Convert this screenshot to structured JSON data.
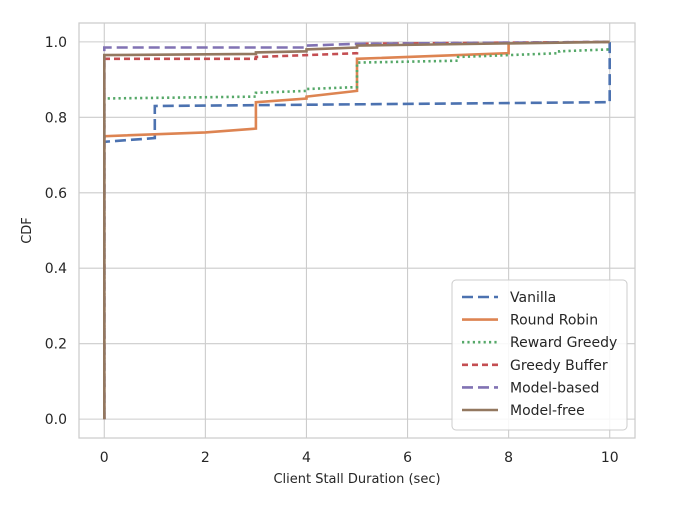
{
  "chart_data": {
    "type": "line",
    "title": "",
    "xlabel": "Client Stall Duration (sec)",
    "ylabel": "CDF",
    "xlim": [
      -0.5,
      10.5
    ],
    "ylim": [
      -0.05,
      1.05
    ],
    "xticks": [
      0,
      2,
      4,
      6,
      8,
      10
    ],
    "yticks": [
      0.0,
      0.2,
      0.4,
      0.6,
      0.8,
      1.0
    ],
    "xtick_labels": [
      "0",
      "2",
      "4",
      "6",
      "8",
      "10"
    ],
    "ytick_labels": [
      "0.0",
      "0.2",
      "0.4",
      "0.6",
      "0.8",
      "1.0"
    ],
    "grid": true,
    "legend_position": "lower-right",
    "series": [
      {
        "name": "Vanilla",
        "color": "#4c72b0",
        "style": "dashed",
        "points": [
          [
            0,
            0.0
          ],
          [
            0,
            0.735
          ],
          [
            1,
            0.745
          ],
          [
            1,
            0.83
          ],
          [
            10,
            0.84
          ],
          [
            10,
            1.0
          ]
        ]
      },
      {
        "name": "Round Robin",
        "color": "#dd8452",
        "style": "solid",
        "points": [
          [
            0,
            0.0
          ],
          [
            0,
            0.75
          ],
          [
            2,
            0.76
          ],
          [
            3,
            0.77
          ],
          [
            3,
            0.84
          ],
          [
            4,
            0.85
          ],
          [
            4,
            0.855
          ],
          [
            5,
            0.87
          ],
          [
            5,
            0.955
          ],
          [
            8,
            0.97
          ],
          [
            8,
            1.0
          ]
        ]
      },
      {
        "name": "Reward Greedy",
        "color": "#55a868",
        "style": "dotted",
        "points": [
          [
            0,
            0.0
          ],
          [
            0,
            0.85
          ],
          [
            3,
            0.855
          ],
          [
            3,
            0.865
          ],
          [
            4,
            0.87
          ],
          [
            4,
            0.875
          ],
          [
            5,
            0.88
          ],
          [
            5,
            0.945
          ],
          [
            7,
            0.95
          ],
          [
            7,
            0.96
          ],
          [
            9,
            0.97
          ],
          [
            9,
            0.975
          ],
          [
            10,
            0.98
          ]
        ]
      },
      {
        "name": "Greedy Buffer",
        "color": "#c44e52",
        "style": "dashed-short",
        "points": [
          [
            0,
            0.0
          ],
          [
            0,
            0.955
          ],
          [
            3,
            0.955
          ],
          [
            3,
            0.96
          ],
          [
            5,
            0.97
          ],
          [
            5,
            0.995
          ],
          [
            10,
            1.0
          ]
        ]
      },
      {
        "name": "Model-based",
        "color": "#8172b3",
        "style": "dashed",
        "points": [
          [
            0,
            0.0
          ],
          [
            0,
            0.985
          ],
          [
            4,
            0.985
          ],
          [
            4,
            0.99
          ],
          [
            5,
            0.995
          ],
          [
            10,
            1.0
          ]
        ]
      },
      {
        "name": "Model-free",
        "color": "#937860",
        "style": "solid",
        "points": [
          [
            0,
            0.0
          ],
          [
            0,
            0.965
          ],
          [
            3,
            0.968
          ],
          [
            3,
            0.972
          ],
          [
            4,
            0.975
          ],
          [
            4,
            0.98
          ],
          [
            5,
            0.985
          ],
          [
            5,
            0.99
          ],
          [
            10,
            1.0
          ]
        ]
      }
    ]
  }
}
